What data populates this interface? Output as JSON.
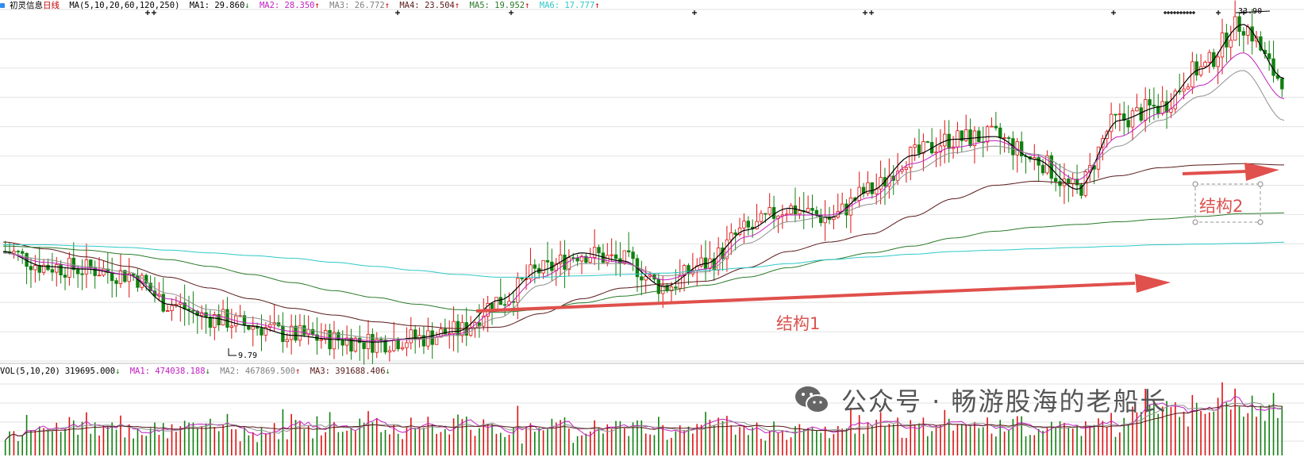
{
  "price_header": {
    "stock_name": "初灵信息",
    "period": "日线",
    "ma_params": "MA(5,10,20,60,120,250)",
    "ma1": "MA1: 29.860",
    "ma2": "MA2: 28.350",
    "ma3": "MA3: 26.772",
    "ma4": "MA4: 23.504",
    "ma5": "MA5: 19.952",
    "ma6": "MA6: 17.777"
  },
  "volume_header": {
    "params": "VOL(5,10,20)",
    "vol": "319695.000",
    "ma1": "MA1: 474038.188",
    "ma2": "MA2: 467869.500",
    "ma3": "MA3: 391688.406"
  },
  "annotations": {
    "structure1": "结构1",
    "structure2": "结构2",
    "low_label": "9.79",
    "high_label": "33.90"
  },
  "watermark": {
    "text": "公众号 · 畅游股海的老船长"
  },
  "colors": {
    "up": "#e01010",
    "down": "#108010",
    "ma1": "#000000",
    "ma2": "#c020c0",
    "ma3": "#909090",
    "ma4": "#5a1a1a",
    "ma5": "#2a7a2a",
    "ma6": "#30c8c8",
    "arrow": "#e0504c"
  },
  "chart_data": {
    "type": "line",
    "title": "",
    "xlabel": "",
    "ylabel": "",
    "ylim": [
      9,
      35
    ],
    "series": [
      {
        "name": "MA1",
        "values": [
          17.1,
          16.0,
          15.8,
          15.4,
          13.2,
          12.2,
          11.6,
          10.9,
          10.6,
          10.4,
          10.7,
          11.2,
          13.5,
          15.7,
          17.0,
          16.4,
          14.5,
          16.2,
          18.7,
          20.3,
          19.6,
          21.6,
          24.2,
          25.4,
          25.6,
          23.9,
          21.7,
          26.8,
          27.8,
          30.6,
          33.9,
          29.9
        ]
      },
      {
        "name": "MA2",
        "values": [
          17.0,
          16.3,
          15.9,
          15.4,
          13.6,
          12.4,
          11.8,
          11.2,
          10.7,
          10.5,
          10.6,
          11.0,
          12.8,
          15.2,
          16.7,
          16.3,
          15.0,
          15.8,
          18.2,
          19.8,
          19.8,
          21.1,
          23.6,
          24.8,
          25.3,
          24.2,
          22.4,
          25.6,
          27.3,
          29.4,
          31.8,
          28.4
        ]
      },
      {
        "name": "MA3",
        "values": [
          17.0,
          16.5,
          16.0,
          15.6,
          14.0,
          12.8,
          12.2,
          11.5,
          11.0,
          10.7,
          10.6,
          10.9,
          12.2,
          14.6,
          16.2,
          16.2,
          15.3,
          15.6,
          17.7,
          19.3,
          19.7,
          20.6,
          23.0,
          24.4,
          24.9,
          24.3,
          22.9,
          24.9,
          26.8,
          28.6,
          30.5,
          26.8
        ]
      },
      {
        "name": "MA4",
        "values": [
          17.8,
          17.3,
          16.7,
          16.0,
          15.2,
          14.4,
          13.6,
          12.9,
          12.4,
          11.9,
          11.6,
          11.4,
          11.5,
          12.5,
          13.6,
          14.4,
          14.7,
          14.9,
          15.9,
          17.1,
          17.8,
          18.4,
          19.7,
          21.0,
          22.0,
          22.3,
          22.1,
          22.7,
          23.3,
          23.5,
          23.6,
          23.5
        ]
      },
      {
        "name": "MA5",
        "values": [
          17.5,
          17.4,
          17.2,
          16.9,
          16.5,
          16.0,
          15.4,
          14.8,
          14.2,
          13.7,
          13.2,
          12.8,
          12.6,
          12.8,
          13.3,
          13.8,
          14.2,
          14.6,
          15.2,
          15.9,
          16.5,
          17.0,
          17.5,
          18.1,
          18.6,
          18.9,
          19.1,
          19.3,
          19.5,
          19.7,
          19.9,
          19.95
        ]
      },
      {
        "name": "MA6",
        "values": [
          17.6,
          17.6,
          17.5,
          17.4,
          17.2,
          17.0,
          16.8,
          16.6,
          16.3,
          16.0,
          15.7,
          15.4,
          15.2,
          15.2,
          15.3,
          15.4,
          15.5,
          15.7,
          15.9,
          16.2,
          16.5,
          16.7,
          16.9,
          17.1,
          17.2,
          17.3,
          17.4,
          17.5,
          17.6,
          17.65,
          17.7,
          17.78
        ]
      }
    ]
  }
}
